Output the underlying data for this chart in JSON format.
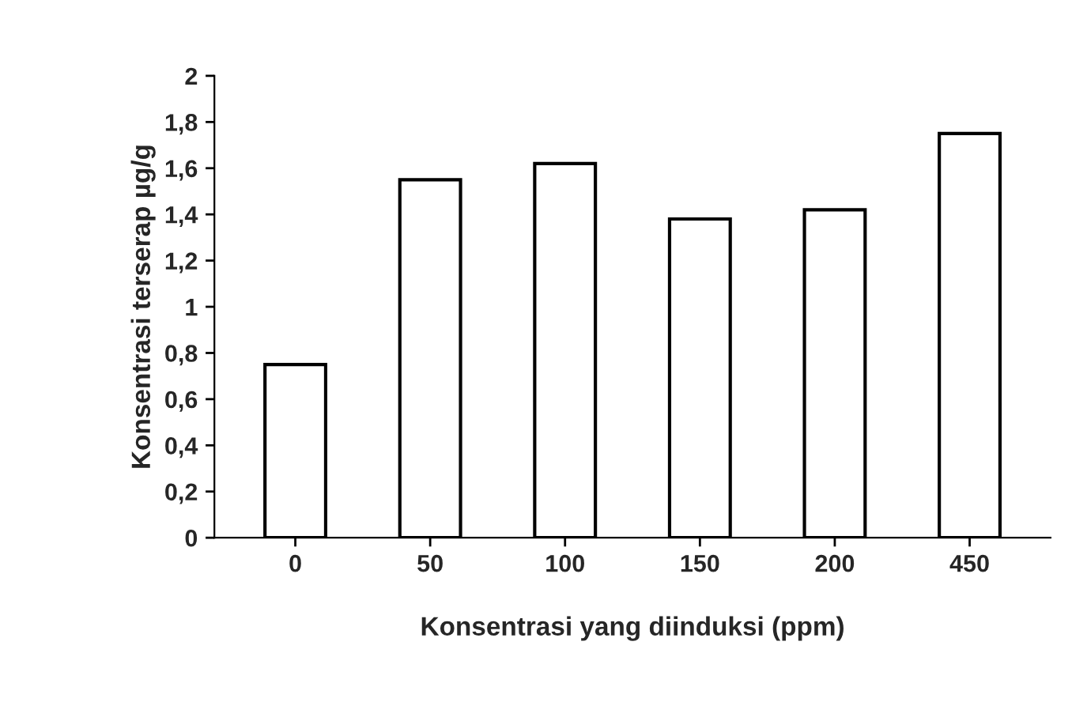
{
  "chart_data": {
    "type": "bar",
    "xlabel": "Konsentrasi yang diinduksi (ppm)",
    "ylabel": "Konsentrasi terserap µg/g",
    "categories": [
      "0",
      "50",
      "100",
      "150",
      "200",
      "450"
    ],
    "values": [
      0.75,
      1.55,
      1.62,
      1.38,
      1.42,
      1.75
    ],
    "color": "#ffffff",
    "ylim": [
      0,
      2
    ],
    "yticks": [
      0,
      {
        "value": 0.2,
        "label": "0,2"
      },
      {
        "value": 0.4,
        "label": "0,4"
      },
      {
        "value": 0.6,
        "label": "0,6"
      },
      {
        "value": 0.8,
        "label": "0,8"
      },
      1,
      {
        "value": 1.2,
        "label": "1,2"
      },
      {
        "value": 1.4,
        "label": "1,4"
      },
      {
        "value": 1.6,
        "label": "1,6"
      },
      {
        "value": 1.8,
        "label": "1,8"
      },
      2
    ],
    "grid": false,
    "legend": false
  }
}
